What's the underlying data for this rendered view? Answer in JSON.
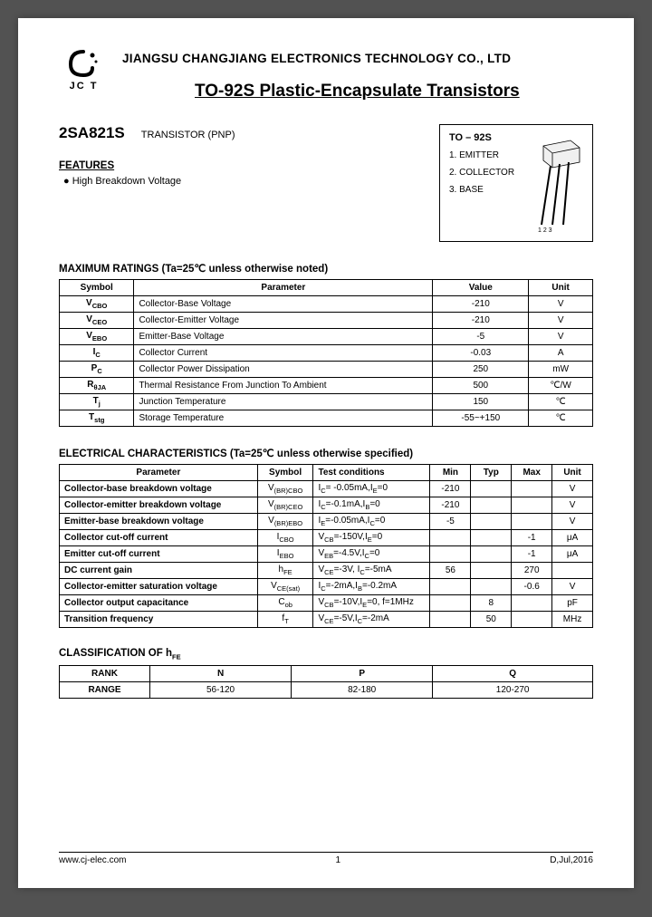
{
  "company": "JIANGSU CHANGJIANG ELECTRONICS TECHNOLOGY CO., LTD",
  "logo_text": "JC T",
  "title": "TO-92S Plastic-Encapsulate Transistors",
  "part_number": "2SA821S",
  "part_type": "TRANSISTOR (PNP)",
  "features_heading": "FEATURES",
  "features": [
    "High Breakdown Voltage"
  ],
  "package": {
    "title": "TO – 92S",
    "pins": [
      "1. EMITTER",
      "2. COLLECTOR",
      "3. BASE"
    ],
    "pin_labels": "1 2 3"
  },
  "max_heading": "MAXIMUM RATINGS (Ta=25℃ unless otherwise noted)",
  "max_headers": [
    "Symbol",
    "Parameter",
    "Value",
    "Unit"
  ],
  "max_rows": [
    {
      "sym": "V<sub>CBO</sub>",
      "param": "Collector-Base Voltage",
      "val": "-210",
      "unit": "V"
    },
    {
      "sym": "V<sub>CEO</sub>",
      "param": "Collector-Emitter Voltage",
      "val": "-210",
      "unit": "V"
    },
    {
      "sym": "V<sub>EBO</sub>",
      "param": "Emitter-Base Voltage",
      "val": "-5",
      "unit": "V"
    },
    {
      "sym": "I<sub>C</sub>",
      "param": "Collector Current",
      "val": "-0.03",
      "unit": "A"
    },
    {
      "sym": "P<sub>C</sub>",
      "param": "Collector Power Dissipation",
      "val": "250",
      "unit": "mW"
    },
    {
      "sym": "R<sub>θJA</sub>",
      "param": "Thermal Resistance From Junction To Ambient",
      "val": "500",
      "unit": "℃/W"
    },
    {
      "sym": "T<sub>j</sub>",
      "param": "Junction Temperature",
      "val": "150",
      "unit": "℃"
    },
    {
      "sym": "T<sub>stg</sub>",
      "param": "Storage Temperature",
      "val": "-55~+150",
      "unit": "℃"
    }
  ],
  "elec_heading": "ELECTRICAL CHARACTERISTICS (Ta=25℃ unless otherwise specified)",
  "elec_headers": [
    "Parameter",
    "Symbol",
    "Test conditions",
    "Min",
    "Typ",
    "Max",
    "Unit"
  ],
  "elec_rows": [
    {
      "p": "Collector-base breakdown voltage",
      "s": "V<sub>(BR)CBO</sub>",
      "c": "I<sub>C</sub>= -0.05mA,I<sub>E</sub>=0",
      "min": "-210",
      "typ": "",
      "max": "",
      "u": "V"
    },
    {
      "p": "Collector-emitter breakdown voltage",
      "s": "V<sub>(BR)CEO</sub>",
      "c": "I<sub>C</sub>=-0.1mA,I<sub>B</sub>=0",
      "min": "-210",
      "typ": "",
      "max": "",
      "u": "V"
    },
    {
      "p": "Emitter-base breakdown voltage",
      "s": "V<sub>(BR)EBO</sub>",
      "c": "I<sub>E</sub>=-0.05mA,I<sub>C</sub>=0",
      "min": "-5",
      "typ": "",
      "max": "",
      "u": "V"
    },
    {
      "p": "Collector cut-off current",
      "s": "I<sub>CBO</sub>",
      "c": "V<sub>CB</sub>=-150V,I<sub>E</sub>=0",
      "min": "",
      "typ": "",
      "max": "-1",
      "u": "μA"
    },
    {
      "p": "Emitter cut-off current",
      "s": "I<sub>EBO</sub>",
      "c": "V<sub>EB</sub>=-4.5V,I<sub>C</sub>=0",
      "min": "",
      "typ": "",
      "max": "-1",
      "u": "μA"
    },
    {
      "p": "DC current gain",
      "s": "h<sub>FE</sub>",
      "c": "V<sub>CE</sub>=-3V, I<sub>C</sub>=-5mA",
      "min": "56",
      "typ": "",
      "max": "270",
      "u": ""
    },
    {
      "p": "Collector-emitter saturation voltage",
      "s": "V<sub>CE(sat)</sub>",
      "c": "I<sub>C</sub>=-2mA,I<sub>B</sub>=-0.2mA",
      "min": "",
      "typ": "",
      "max": "-0.6",
      "u": "V"
    },
    {
      "p": "Collector output capacitance",
      "s": "C<sub>ob</sub>",
      "c": "V<sub>CB</sub>=-10V,I<sub>E</sub>=0, f=1MHz",
      "min": "",
      "typ": "8",
      "max": "",
      "u": "pF"
    },
    {
      "p": "Transition frequency",
      "s": "f<sub>T</sub>",
      "c": "V<sub>CE</sub>=-5V,I<sub>C</sub>=-2mA",
      "min": "",
      "typ": "50",
      "max": "",
      "u": "MHz"
    }
  ],
  "class_heading": "CLASSIFICATION OF h<sub>FE</sub>",
  "class_headers": [
    "RANK",
    "N",
    "P",
    "Q"
  ],
  "class_row": [
    "RANGE",
    "56-120",
    "82-180",
    "120-270"
  ],
  "footer": {
    "url": "www.cj-elec.com",
    "page": "1",
    "date": "D,Jul,2016"
  }
}
